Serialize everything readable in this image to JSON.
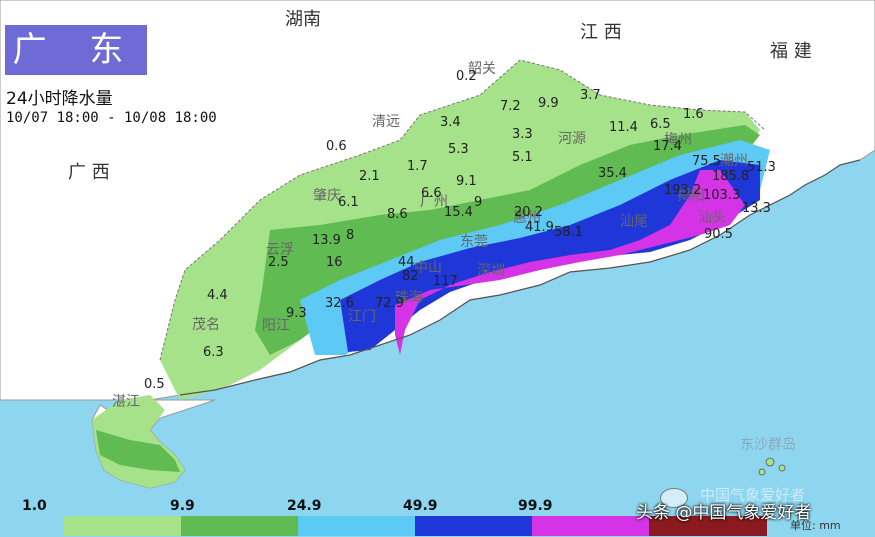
{
  "title": "广 东",
  "subtitle": "24小时降水量",
  "period": "10/07 18:00 - 10/08 18:00",
  "neighbors": [
    {
      "name": "湖南",
      "key": "hunan"
    },
    {
      "name": "江 西",
      "key": "jiangxi"
    },
    {
      "name": "福 建",
      "key": "fujian"
    },
    {
      "name": "广 西",
      "key": "guangxi"
    }
  ],
  "cities": [
    {
      "name": "韶关",
      "key": "shaoguan"
    },
    {
      "name": "清远",
      "key": "qingyuan"
    },
    {
      "name": "河源",
      "key": "heyuan"
    },
    {
      "name": "梅州",
      "key": "meizhou"
    },
    {
      "name": "肇庆",
      "key": "zhaoqing"
    },
    {
      "name": "广州",
      "key": "guangzhou"
    },
    {
      "name": "惠州",
      "key": "huizhou"
    },
    {
      "name": "东莞",
      "key": "dongguan"
    },
    {
      "name": "中山",
      "key": "zhongshan"
    },
    {
      "name": "深圳",
      "key": "shenzhen"
    },
    {
      "name": "珠海",
      "key": "zhuhai"
    },
    {
      "name": "江门",
      "key": "jiangmen"
    },
    {
      "name": "汕尾",
      "key": "shanwei"
    },
    {
      "name": "汕头",
      "key": "shantou"
    },
    {
      "name": "揭阳",
      "key": "jieyang"
    },
    {
      "name": "潮州",
      "key": "chaozhou"
    },
    {
      "name": "云浮",
      "key": "yunfu"
    },
    {
      "name": "茂名",
      "key": "maoming"
    },
    {
      "name": "阳江",
      "key": "yangjiang"
    },
    {
      "name": "湛江",
      "key": "zhanjiang"
    },
    {
      "name": "东沙群岛",
      "key": "dongsha"
    }
  ],
  "values": [
    "0.2",
    "7.2",
    "9.9",
    "3.7",
    "1.6",
    "6.5",
    "11.4",
    "17.4",
    "0.6",
    "3.4",
    "5.3",
    "3.3",
    "5.1",
    "35.4",
    "75.5",
    "185.8",
    "51.3",
    "103.3",
    "13.3",
    "90.5",
    "193.2",
    "1.7",
    "9.1",
    "2.1",
    "6.6",
    "6.1",
    "8.6",
    "15.4",
    "9",
    "20.2",
    "41.9",
    "58.1",
    "13.9",
    "8",
    "16",
    "2.5",
    "44",
    "82",
    "117",
    "4.4",
    "32.6",
    "9.3",
    "72.9",
    "6.3",
    "0.5"
  ],
  "legend": {
    "thresholds": [
      "1.0",
      "9.9",
      "24.9",
      "49.9",
      "99.9"
    ],
    "colors": [
      "#a6e28a",
      "#5fbb52",
      "#5ccaf5",
      "#1f37d8",
      "#d533e6",
      "#8a1a1f"
    ],
    "unit": "单位: mm"
  },
  "watermark": "头条 @中国气象爱好者",
  "watermark2": "中国气象爱好者",
  "colors": {
    "sea": "#8ed6ef",
    "land": "#ffffff",
    "title_bg": "#6e6ad6"
  }
}
